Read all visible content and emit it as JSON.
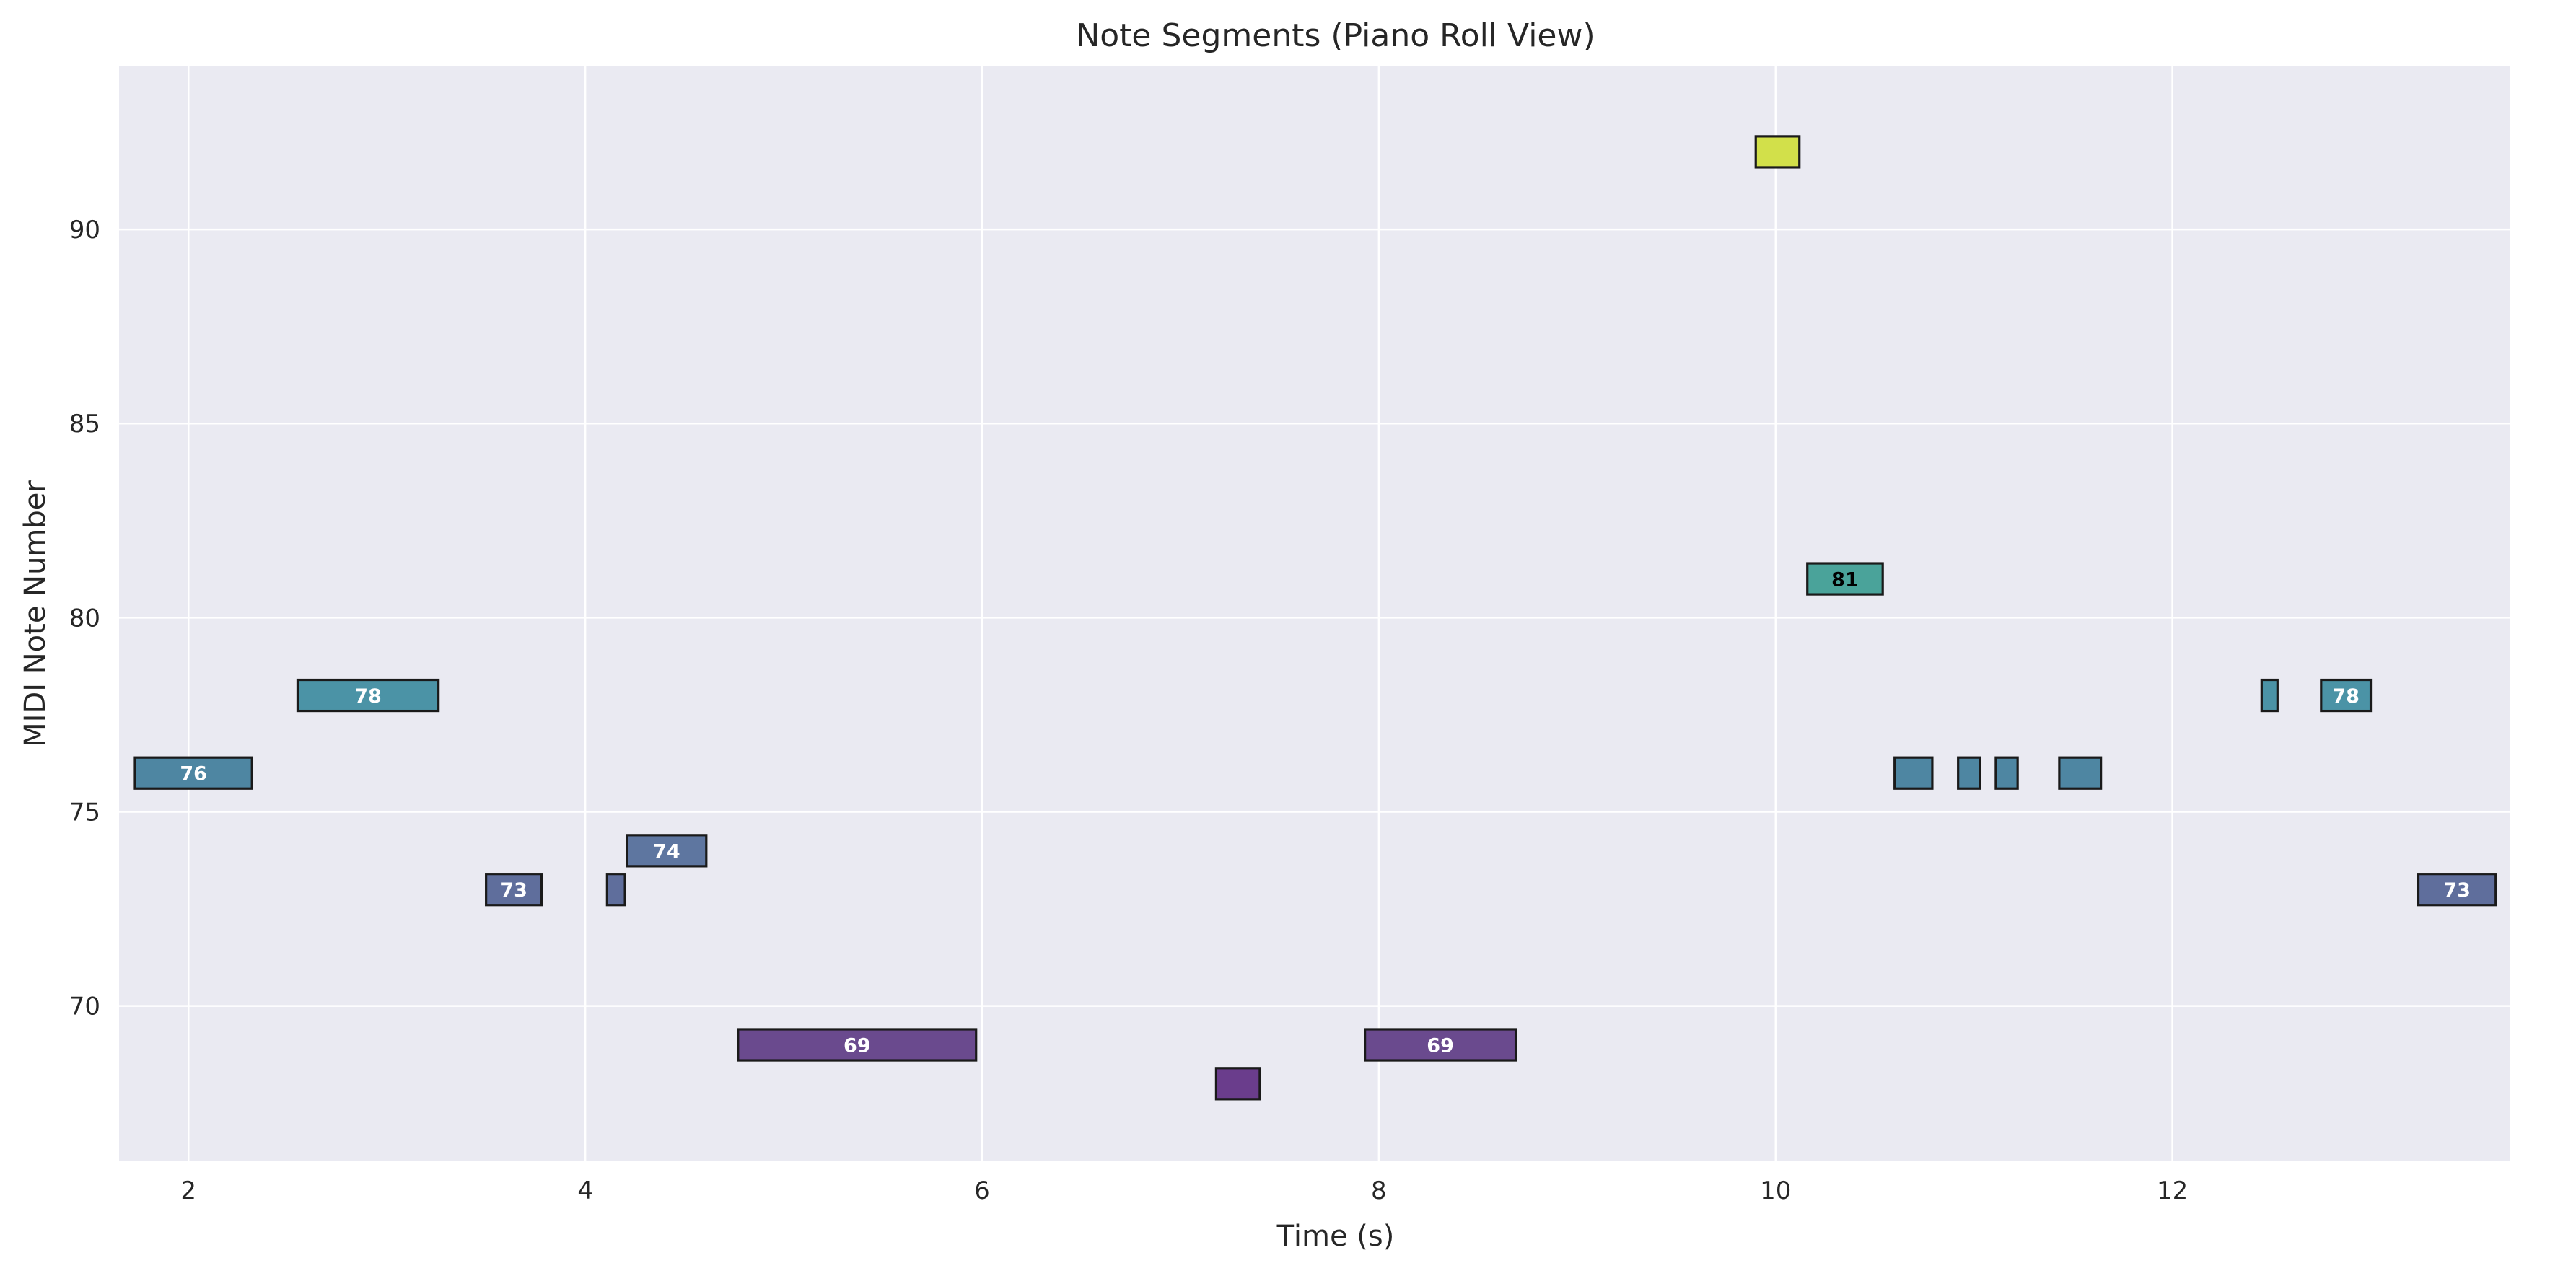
{
  "chart_data": {
    "type": "bar",
    "subtype": "piano-roll",
    "title": "Note Segments (Piano Roll View)",
    "xlabel": "Time (s)",
    "ylabel": "MIDI Note Number",
    "xlim": [
      1.65,
      13.7
    ],
    "ylim": [
      66,
      94.2
    ],
    "xticks": [
      2,
      4,
      6,
      8,
      10,
      12
    ],
    "yticks": [
      70,
      75,
      80,
      85,
      90
    ],
    "grid": true,
    "background": "#eaeaf2",
    "grid_color": "#ffffff",
    "edge_color": "#1a1a1a",
    "colors": {
      "68": "#6a3d8c",
      "69": "#6a4a8e",
      "73": "#5f6e9c",
      "74": "#5e76a0",
      "76": "#4e86a2",
      "78": "#4b93a6",
      "81": "#4aa39a",
      "92": "#d2e04a"
    },
    "notes": [
      {
        "start": 1.73,
        "end": 2.32,
        "pitch": 76,
        "label": "76"
      },
      {
        "start": 2.55,
        "end": 3.26,
        "pitch": 78,
        "label": "78"
      },
      {
        "start": 3.5,
        "end": 3.78,
        "pitch": 73,
        "label": "73"
      },
      {
        "start": 4.11,
        "end": 4.2,
        "pitch": 73,
        "label": ""
      },
      {
        "start": 4.21,
        "end": 4.61,
        "pitch": 74,
        "label": "74"
      },
      {
        "start": 4.77,
        "end": 5.97,
        "pitch": 69,
        "label": "69"
      },
      {
        "start": 7.18,
        "end": 7.4,
        "pitch": 68,
        "label": ""
      },
      {
        "start": 7.93,
        "end": 8.69,
        "pitch": 69,
        "label": "69"
      },
      {
        "start": 9.9,
        "end": 10.12,
        "pitch": 92,
        "label": ""
      },
      {
        "start": 10.16,
        "end": 10.54,
        "pitch": 81,
        "label": "81"
      },
      {
        "start": 10.6,
        "end": 10.79,
        "pitch": 76,
        "label": ""
      },
      {
        "start": 10.92,
        "end": 11.03,
        "pitch": 76,
        "label": ""
      },
      {
        "start": 11.11,
        "end": 11.22,
        "pitch": 76,
        "label": ""
      },
      {
        "start": 11.43,
        "end": 11.64,
        "pitch": 76,
        "label": ""
      },
      {
        "start": 12.45,
        "end": 12.53,
        "pitch": 78,
        "label": ""
      },
      {
        "start": 12.75,
        "end": 13.0,
        "pitch": 78,
        "label": "78"
      },
      {
        "start": 13.24,
        "end": 13.63,
        "pitch": 73,
        "label": "73"
      }
    ]
  }
}
